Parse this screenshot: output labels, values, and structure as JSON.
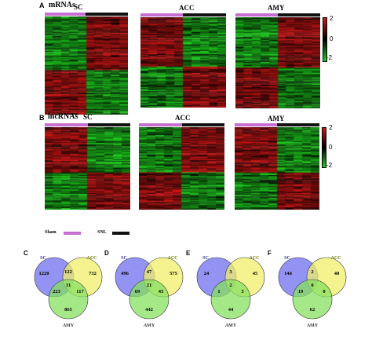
{
  "panel_a": {
    "letter": "A",
    "title": "mRNAs",
    "heatmaps": [
      {
        "label": "SC",
        "seed": 11,
        "split": 0.55,
        "n_cols": 5,
        "left_bias": -1,
        "rows": 130
      },
      {
        "label": "ACC",
        "seed": 23,
        "split": 0.55,
        "n_cols": 5,
        "left_bias": 1,
        "rows": 110
      },
      {
        "label": "AMY",
        "seed": 37,
        "split": 0.55,
        "n_cols": 5,
        "left_bias": -1,
        "rows": 120
      }
    ],
    "colorbar": {
      "ticks": [
        "2",
        "0",
        "-2"
      ]
    }
  },
  "panel_b": {
    "letter": "B",
    "title": "lncRNAs",
    "heatmaps": [
      {
        "label": "SC",
        "seed": 53,
        "split": 0.55,
        "n_cols": 5,
        "left_bias": 1,
        "rows": 100
      },
      {
        "label": "ACC",
        "seed": 71,
        "split": 0.55,
        "n_cols": 5,
        "left_bias": -1,
        "rows": 95
      },
      {
        "label": "AMY",
        "seed": 89,
        "split": 0.55,
        "n_cols": 5,
        "left_bias": 1,
        "rows": 100
      }
    ],
    "colorbar": {
      "ticks": [
        "2",
        "0",
        "-2"
      ]
    }
  },
  "legend": {
    "sham_label": "Sham",
    "snl_label": "SNL",
    "sham_color": "#c66fd0",
    "snl_color": "#111111"
  },
  "colors": {
    "high": "#d01818",
    "mid": "#000000",
    "low": "#20d020",
    "venn_sc": "#6f6ff0",
    "venn_acc": "#f0ef6a",
    "venn_amy": "#86e060"
  },
  "venn": [
    {
      "letter": "C",
      "labels": {
        "sc": "SC",
        "acc": "ACC",
        "amy": "AMY"
      },
      "regions": {
        "sc_only": "1220",
        "acc_only": "732",
        "amy_only": "865",
        "sc_acc": "122",
        "sc_amy": "223",
        "acc_amy": "117",
        "all": "31"
      }
    },
    {
      "letter": "D",
      "labels": {
        "sc": "SC",
        "acc": "ACC",
        "amy": "AMY"
      },
      "regions": {
        "sc_only": "496",
        "acc_only": "575",
        "amy_only": "442",
        "sc_acc": "47",
        "sc_amy": "69",
        "acc_amy": "43",
        "all": "21"
      }
    },
    {
      "letter": "E",
      "labels": {
        "sc": "SC",
        "acc": "ACC",
        "amy": "AMY"
      },
      "regions": {
        "sc_only": "24",
        "acc_only": "45",
        "amy_only": "44",
        "sc_acc": "3",
        "sc_amy": "1",
        "acc_amy": "3",
        "all": "2"
      }
    },
    {
      "letter": "F",
      "labels": {
        "sc": "SC",
        "acc": "ACC",
        "amy": "AMY"
      },
      "regions": {
        "sc_only": "144",
        "acc_only": "40",
        "amy_only": "62",
        "sc_acc": "2",
        "sc_amy": "19",
        "acc_amy": "0",
        "all": "0"
      }
    }
  ]
}
